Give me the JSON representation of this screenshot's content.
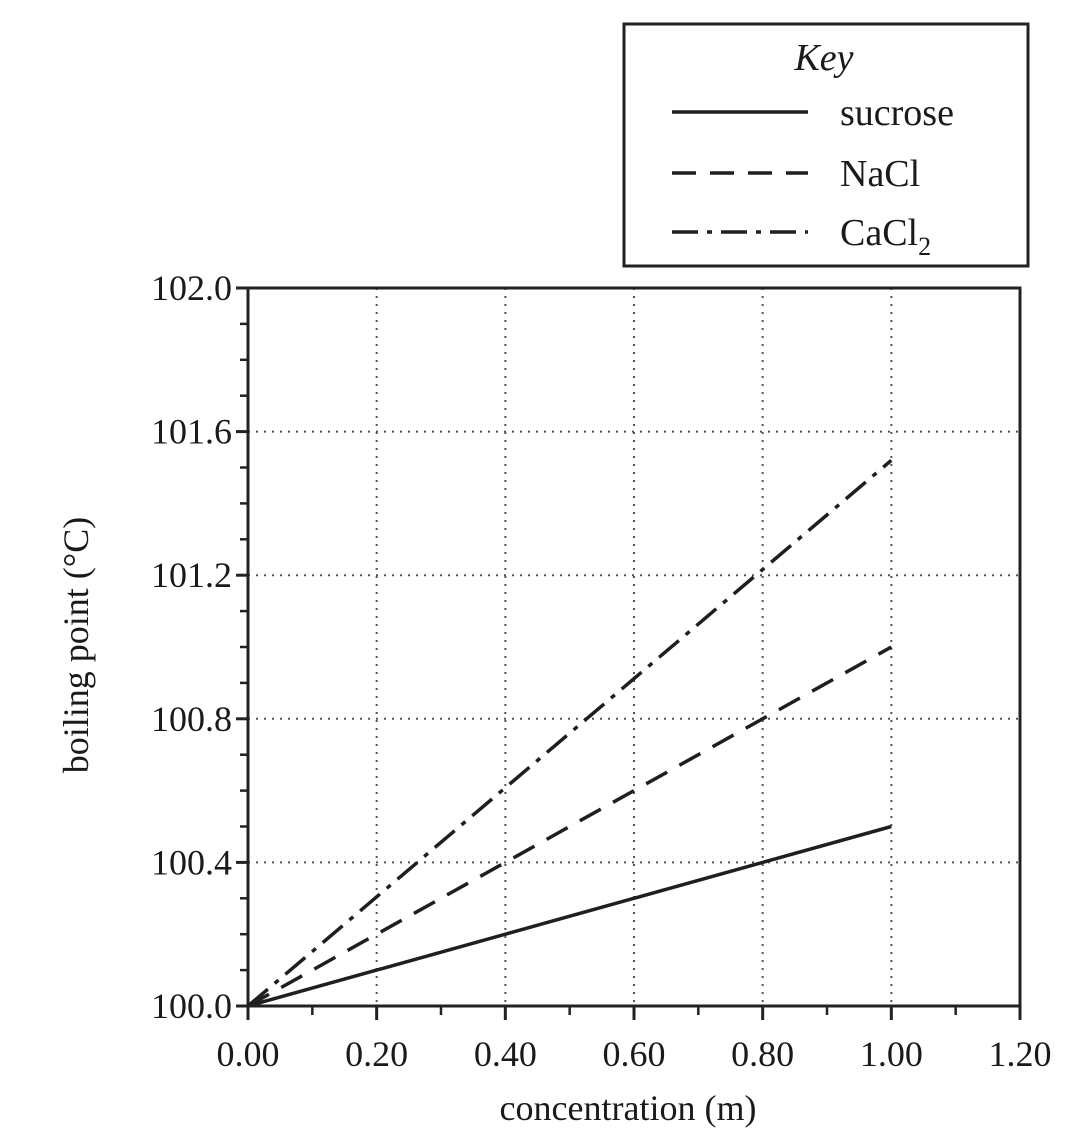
{
  "chart_data": {
    "type": "line",
    "xlabel": "concentration (m)",
    "ylabel": "boiling point (°C)",
    "xlim": [
      0,
      1.2
    ],
    "ylim": [
      100.0,
      102.0
    ],
    "x_ticks": [
      "0.00",
      "0.20",
      "0.40",
      "0.60",
      "0.80",
      "1.00",
      "1.20"
    ],
    "y_ticks": [
      "100.0",
      "100.4",
      "100.8",
      "101.2",
      "101.6",
      "102.0"
    ],
    "grid": true,
    "legend": {
      "title": "Key",
      "placement": "top-right",
      "entries": [
        {
          "label": "sucrose",
          "style": "solid"
        },
        {
          "label": "NaCl",
          "style": "dashed"
        },
        {
          "label": "CaCl",
          "subscript": "2",
          "style": "dash-dot"
        }
      ]
    },
    "series": [
      {
        "name": "sucrose",
        "style": "solid",
        "x": [
          0.0,
          1.0
        ],
        "y": [
          100.0,
          100.5
        ]
      },
      {
        "name": "NaCl",
        "style": "dashed",
        "x": [
          0.0,
          1.0
        ],
        "y": [
          100.0,
          101.0
        ]
      },
      {
        "name": "CaCl2",
        "style": "dash-dot",
        "x": [
          0.0,
          1.0
        ],
        "y": [
          100.0,
          101.52
        ]
      }
    ]
  }
}
